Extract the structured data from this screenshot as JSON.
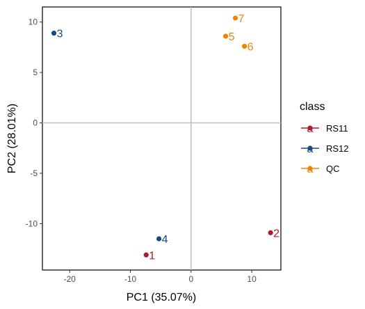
{
  "chart_data": {
    "type": "scatter",
    "xlabel": "PC1 (35.07%)",
    "ylabel": "PC2 (28.01%)",
    "xlim": [
      -24.5,
      14.8
    ],
    "ylim": [
      -14.6,
      11.5
    ],
    "xticks": [
      -20,
      -10,
      0,
      10
    ],
    "yticks": [
      -10,
      -5,
      0,
      5,
      10
    ],
    "reference_lines": {
      "x": 0,
      "y": 0
    },
    "grid": false,
    "legend": {
      "title": "class",
      "position": "right"
    },
    "classes": [
      {
        "name": "RS11",
        "color": "#B2182B"
      },
      {
        "name": "RS12",
        "color": "#174A7E"
      },
      {
        "name": "QC",
        "color": "#F28500"
      }
    ],
    "points": [
      {
        "label": "1",
        "class": "RS11",
        "x": -7.4,
        "y": -13.1
      },
      {
        "label": "2",
        "class": "RS11",
        "x": 13.1,
        "y": -10.9
      },
      {
        "label": "3",
        "class": "RS12",
        "x": -22.6,
        "y": 8.9
      },
      {
        "label": "4",
        "class": "RS12",
        "x": -5.3,
        "y": -11.5
      },
      {
        "label": "5",
        "class": "QC",
        "x": 5.7,
        "y": 8.6
      },
      {
        "label": "6",
        "class": "QC",
        "x": 8.8,
        "y": 7.6
      },
      {
        "label": "7",
        "class": "QC",
        "x": 7.3,
        "y": 10.4
      }
    ]
  }
}
